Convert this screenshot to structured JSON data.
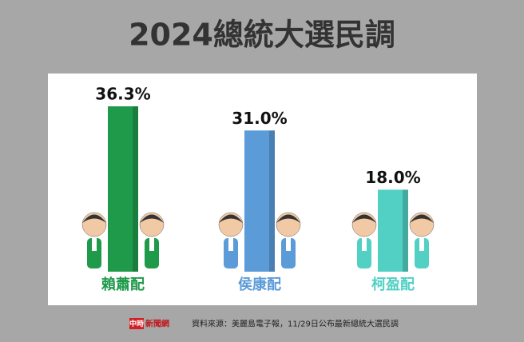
{
  "chart_data": {
    "type": "bar",
    "title": "2024總統大選民調",
    "categories": [
      "賴蕭配",
      "侯康配",
      "柯盈配"
    ],
    "values": [
      36.3,
      31.0,
      18.0
    ],
    "value_labels": [
      "36.3%",
      "31.0%",
      "18.0%"
    ],
    "colors": [
      "#1f9a4b",
      "#5b9bd8",
      "#52d0c4"
    ]
  },
  "footer": {
    "logo": "中時",
    "logo_suffix": "新聞網",
    "source": "資料來源：美麗島電子報，11/29日公布最新總統大選民調"
  }
}
